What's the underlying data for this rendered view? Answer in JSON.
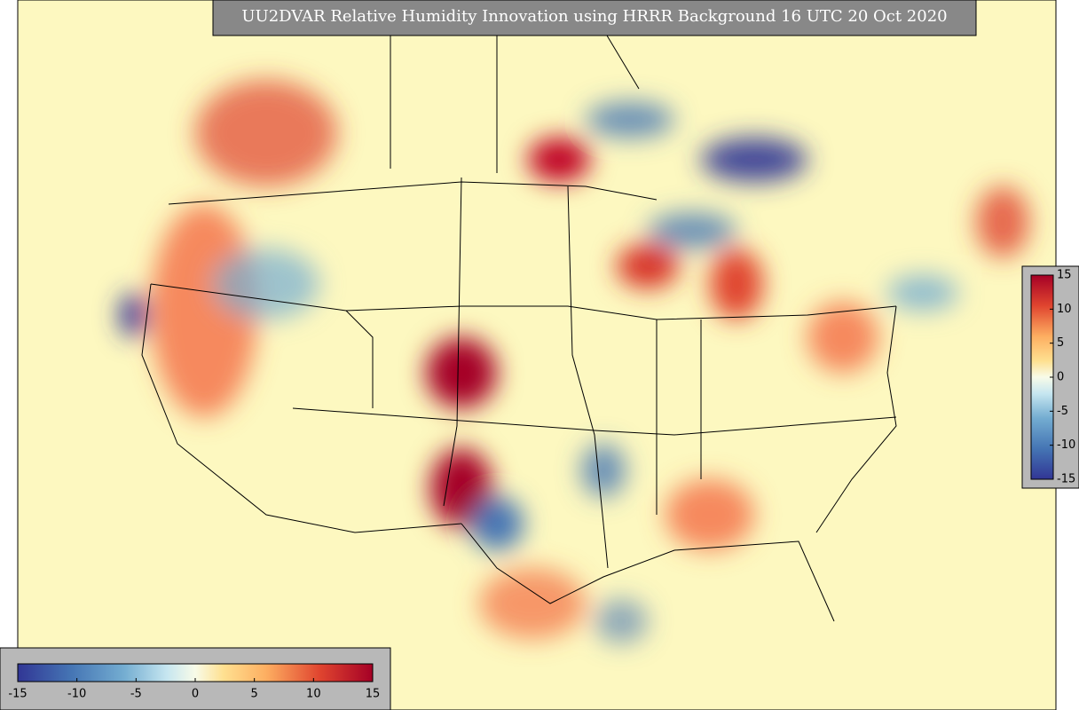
{
  "title": "UU2DVAR Relative Humidity Innovation using HRRR Background 16 UTC 20 Oct 2020",
  "colorbar": {
    "lim": [
      -15,
      15
    ],
    "ticks": [
      -15,
      -10,
      -5,
      0,
      5,
      10,
      15
    ]
  }
}
